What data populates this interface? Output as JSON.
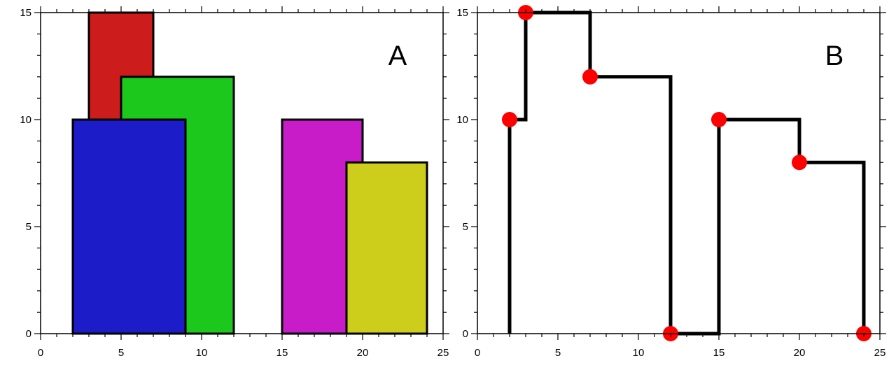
{
  "chart_data": [
    {
      "type": "bar",
      "panel_label": "A",
      "xlim": [
        0,
        25
      ],
      "ylim": [
        0,
        15
      ],
      "x_ticks": [
        0,
        5,
        10,
        15,
        20,
        25
      ],
      "y_ticks": [
        0,
        5,
        10,
        15
      ],
      "grid": false,
      "buildings": [
        {
          "left": 3,
          "right": 7,
          "height": 15,
          "color": "#cc1c1c"
        },
        {
          "left": 5,
          "right": 12,
          "height": 12,
          "color": "#1cc81c"
        },
        {
          "left": 2,
          "right": 9,
          "height": 10,
          "color": "#1c1cc8"
        },
        {
          "left": 15,
          "right": 20,
          "height": 10,
          "color": "#c81cc8"
        },
        {
          "left": 19,
          "right": 24,
          "height": 8,
          "color": "#cdcd1c"
        }
      ]
    },
    {
      "type": "line",
      "panel_label": "B",
      "xlim": [
        0,
        25
      ],
      "ylim": [
        0,
        15
      ],
      "x_ticks": [
        0,
        5,
        10,
        15,
        20,
        25
      ],
      "y_ticks": [
        0,
        5,
        10,
        15
      ],
      "grid": false,
      "line_color": "#000000",
      "point_color": "#ff0000",
      "skyline": [
        [
          2,
          0
        ],
        [
          2,
          10
        ],
        [
          3,
          10
        ],
        [
          3,
          15
        ],
        [
          7,
          15
        ],
        [
          7,
          12
        ],
        [
          12,
          12
        ],
        [
          12,
          0
        ],
        [
          15,
          0
        ],
        [
          15,
          10
        ],
        [
          20,
          10
        ],
        [
          20,
          8
        ],
        [
          24,
          8
        ],
        [
          24,
          0
        ]
      ],
      "key_points": [
        [
          2,
          10
        ],
        [
          3,
          15
        ],
        [
          7,
          12
        ],
        [
          12,
          0
        ],
        [
          15,
          10
        ],
        [
          20,
          8
        ],
        [
          24,
          0
        ]
      ]
    }
  ]
}
